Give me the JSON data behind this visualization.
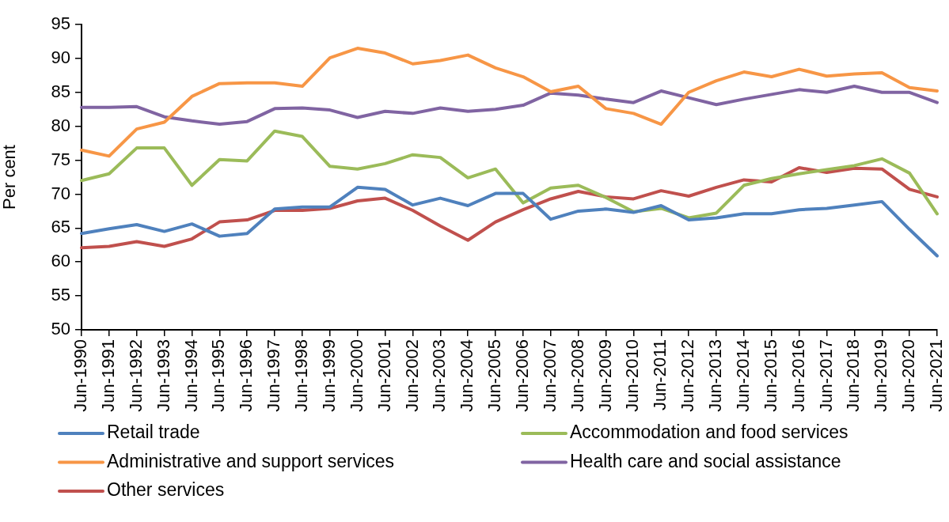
{
  "chart_data": {
    "type": "line",
    "ylabel": "Per cent",
    "categories": [
      "Jun-1990",
      "Jun-1991",
      "Jun-1992",
      "Jun-1993",
      "Jun-1994",
      "Jun-1995",
      "Jun-1996",
      "Jun-1997",
      "Jun-1998",
      "Jun-1999",
      "Jun-2000",
      "Jun-2001",
      "Jun-2002",
      "Jun-2003",
      "Jun-2004",
      "Jun-2005",
      "Jun-2006",
      "Jun-2007",
      "Jun-2008",
      "Jun-2009",
      "Jun-2010",
      "Jun-2011",
      "Jun-2012",
      "Jun-2013",
      "Jun-2014",
      "Jun-2015",
      "Jun-2016",
      "Jun-2017",
      "Jun-2018",
      "Jun-2019",
      "Jun-2020",
      "Jun-2021"
    ],
    "series": [
      {
        "name": "Retail trade",
        "color": "#4f81bd",
        "values": [
          64.2,
          64.9,
          65.5,
          64.5,
          65.6,
          63.8,
          64.2,
          67.8,
          68.1,
          68.1,
          71.0,
          70.7,
          68.4,
          69.4,
          68.3,
          70.1,
          70.1,
          66.3,
          67.5,
          67.8,
          67.3,
          68.3,
          66.2,
          66.5,
          67.1,
          67.1,
          67.7,
          67.9,
          68.4,
          68.9,
          64.8,
          60.9
        ]
      },
      {
        "name": "Accommodation and food services",
        "color": "#9bbb59",
        "values": [
          72.0,
          73.0,
          76.8,
          76.8,
          71.3,
          75.1,
          74.9,
          79.3,
          78.5,
          74.1,
          73.7,
          74.5,
          75.8,
          75.4,
          72.4,
          73.7,
          68.7,
          70.9,
          71.3,
          69.5,
          67.4,
          67.9,
          66.5,
          67.2,
          71.3,
          72.3,
          73.0,
          73.6,
          74.2,
          75.2,
          73.1,
          67.1
        ]
      },
      {
        "name": "Administrative and support services",
        "color": "#f79646",
        "values": [
          76.5,
          75.6,
          79.6,
          80.6,
          84.4,
          86.3,
          86.4,
          86.4,
          85.9,
          90.1,
          91.5,
          90.8,
          89.2,
          89.7,
          90.5,
          88.6,
          87.3,
          85.1,
          85.9,
          82.6,
          81.9,
          80.3,
          85.0,
          86.7,
          88.0,
          87.3,
          88.4,
          87.4,
          87.7,
          87.9,
          85.7,
          85.2
        ]
      },
      {
        "name": "Health care and social assistance",
        "color": "#8064a2",
        "values": [
          82.8,
          82.8,
          82.9,
          81.4,
          80.8,
          80.3,
          80.7,
          82.6,
          82.7,
          82.4,
          81.3,
          82.2,
          81.9,
          82.7,
          82.2,
          82.5,
          83.1,
          84.9,
          84.6,
          84.0,
          83.5,
          85.2,
          84.2,
          83.2,
          84.0,
          84.7,
          85.4,
          85.0,
          85.9,
          85.0,
          85.0,
          83.5
        ]
      },
      {
        "name": "Other services",
        "color": "#c0504d",
        "values": [
          62.1,
          62.3,
          63.0,
          62.3,
          63.4,
          65.9,
          66.2,
          67.6,
          67.6,
          67.9,
          69.0,
          69.4,
          67.6,
          65.3,
          63.2,
          65.9,
          67.7,
          69.3,
          70.4,
          69.6,
          69.3,
          70.5,
          69.7,
          71.0,
          72.1,
          71.8,
          73.9,
          73.2,
          73.8,
          73.7,
          70.7,
          69.6
        ]
      }
    ],
    "ylim": [
      50,
      95
    ],
    "yticks": [
      50,
      55,
      60,
      65,
      70,
      75,
      80,
      85,
      90,
      95
    ],
    "grid": false,
    "legend": "bottom"
  }
}
